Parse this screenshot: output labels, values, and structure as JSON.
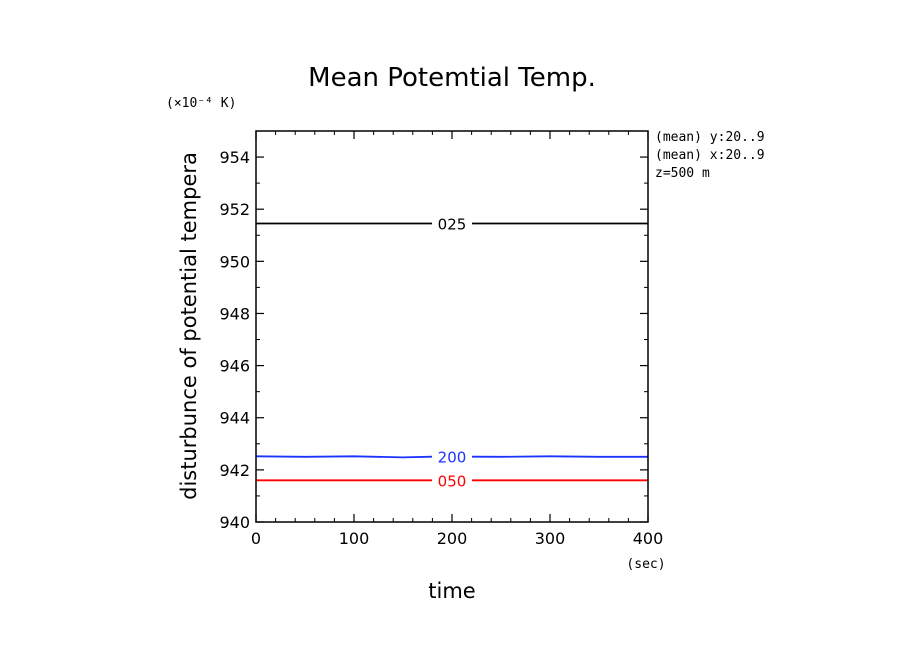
{
  "chart_data": {
    "type": "line",
    "title": "Mean Potemtial Temp.",
    "xlabel": "time",
    "xunit": "(sec)",
    "ylabel": "disturbunce of potential tempera",
    "yunit": "(×10⁻⁴ K)",
    "xlim": [
      0,
      400
    ],
    "ylim": [
      940,
      955
    ],
    "xticks": [
      0,
      100,
      200,
      300,
      400
    ],
    "yticks": [
      940,
      942,
      944,
      946,
      948,
      950,
      952,
      954
    ],
    "annotations": [
      "(mean) y:20..9",
      "(mean) x:20..9",
      "z=500 m"
    ],
    "grid": false,
    "series": [
      {
        "name": "025",
        "color": "#000000",
        "x": [
          0,
          400
        ],
        "y": [
          951.45,
          951.45
        ]
      },
      {
        "name": "200",
        "color": "#1a33ff",
        "x": [
          0,
          50,
          100,
          150,
          200,
          250,
          300,
          350,
          400
        ],
        "y": [
          942.52,
          942.5,
          942.52,
          942.48,
          942.52,
          942.5,
          942.52,
          942.5,
          942.5
        ]
      },
      {
        "name": "050",
        "color": "#ff0000",
        "x": [
          0,
          400
        ],
        "y": [
          941.6,
          941.6
        ]
      }
    ]
  }
}
